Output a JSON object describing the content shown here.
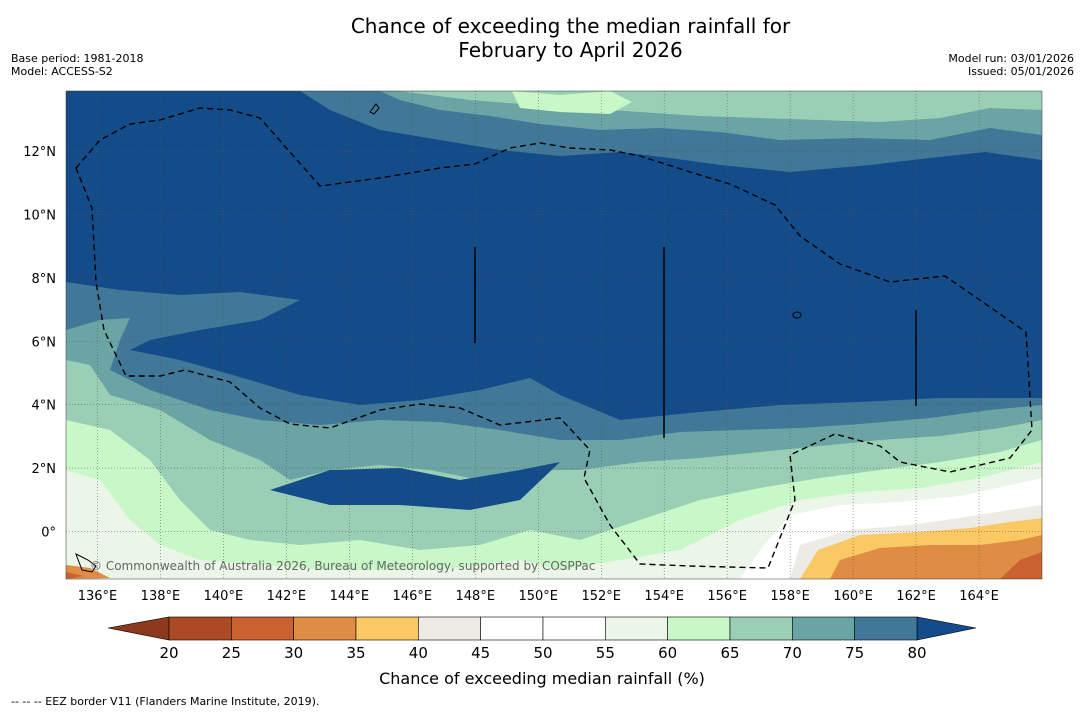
{
  "header": {
    "title_line1": "Chance of exceeding the median rainfall for",
    "title_line2": "February to April 2026",
    "base_period": "Base period: 1981-2018",
    "model": "Model: ACCESS-S2",
    "model_run": "Model run: 03/01/2026",
    "issued": "Issued: 05/01/2026"
  },
  "map": {
    "copyright": "© Commonwealth of Australia 2026, Bureau of Meteorology, supported by COSPPac",
    "lon_range": [
      135,
      166
    ],
    "lat_range": [
      -1.5,
      13.9
    ],
    "lon_ticks": [
      {
        "value": 136,
        "label": "136°E"
      },
      {
        "value": 138,
        "label": "138°E"
      },
      {
        "value": 140,
        "label": "140°E"
      },
      {
        "value": 142,
        "label": "142°E"
      },
      {
        "value": 144,
        "label": "144°E"
      },
      {
        "value": 146,
        "label": "146°E"
      },
      {
        "value": 148,
        "label": "148°E"
      },
      {
        "value": 150,
        "label": "150°E"
      },
      {
        "value": 152,
        "label": "152°E"
      },
      {
        "value": 154,
        "label": "154°E"
      },
      {
        "value": 156,
        "label": "156°E"
      },
      {
        "value": 158,
        "label": "158°E"
      },
      {
        "value": 160,
        "label": "160°E"
      },
      {
        "value": 162,
        "label": "162°E"
      },
      {
        "value": 164,
        "label": "164°E"
      }
    ],
    "lat_ticks": [
      {
        "value": 0,
        "label": "0°"
      },
      {
        "value": 2,
        "label": "2°N"
      },
      {
        "value": 4,
        "label": "4°N"
      },
      {
        "value": 6,
        "label": "6°N"
      },
      {
        "value": 8,
        "label": "8°N"
      },
      {
        "value": 10,
        "label": "10°N"
      },
      {
        "value": 12,
        "label": "12°N"
      }
    ]
  },
  "colorbar": {
    "label": "Chance of exceeding median rainfall (%)",
    "ticks": [
      "20",
      "25",
      "30",
      "35",
      "40",
      "45",
      "50",
      "55",
      "60",
      "65",
      "70",
      "75",
      "80"
    ],
    "colors": [
      "#ad4a26",
      "#c96131",
      "#df8c44",
      "#fac964",
      "#edebe6",
      "#ffffff",
      "#ffffff",
      "#ebf5e8",
      "#c8f8c8",
      "#9acfb6",
      "#6ba4a4",
      "#417897"
    ],
    "under_color": "#8c3a1e",
    "over_color": "#144c8a"
  },
  "footer": {
    "legend": "--  --  -- EEZ border V11 (Flanders Marine Institute, 2019)."
  }
}
